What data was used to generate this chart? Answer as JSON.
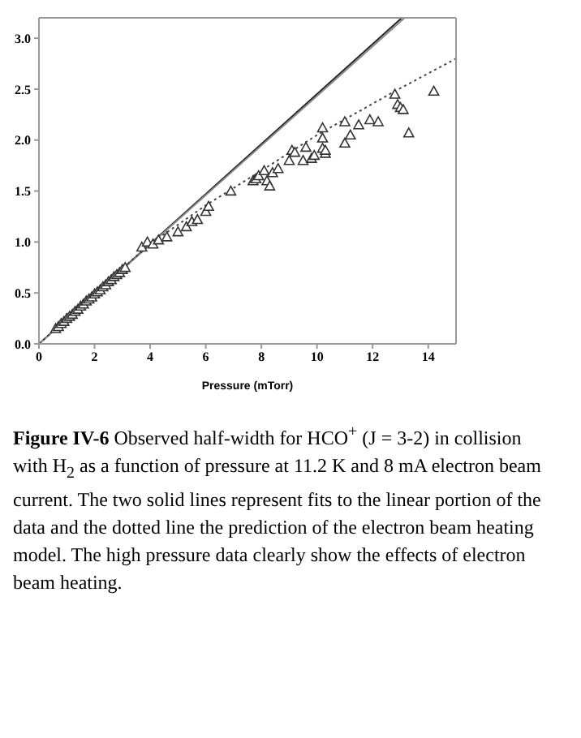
{
  "chart_data": {
    "type": "scatter",
    "xlabel": "Pressure (mTorr)",
    "annotations": [
      "Figure IV-6",
      "Observed half-width for HCO$^{+}$  (J = 3-2) in collision with H$_{2}$ as a function of pressure at 11.2 K and 8 mA electron beam current.  The two solid lines represent fits to the linear portion of the data and the dotted line the prediction of the electron beam heating model.  The high pressure data clearly show the effects of electron beam heating."
    ],
    "xlim": [
      0,
      15
    ],
    "xticks": [
      0,
      2,
      4,
      6,
      8,
      10,
      12,
      14
    ],
    "ylim": [
      0,
      3.2
    ],
    "yticks": [
      {
        "value": 0,
        "label": "0.0"
      },
      {
        "value": 0.5,
        "label": "0.5"
      },
      {
        "value": 1,
        "label": "1.0"
      },
      {
        "value": 1.5,
        "label": "1.5"
      },
      {
        "value": 2,
        "label": "2.0"
      },
      {
        "value": 2.5,
        "label": "2.5"
      },
      {
        "value": 3,
        "label": "3.0"
      }
    ],
    "series": [
      {
        "color": "#333333",
        "marker": "triangle",
        "x": [
          0.6,
          0.7,
          0.8,
          0.9,
          1.0,
          1.1,
          1.2,
          1.3,
          1.4,
          1.5,
          1.6,
          1.7,
          1.8,
          1.9,
          2.0,
          2.1,
          2.2,
          2.3,
          2.4,
          2.5,
          2.6,
          2.7,
          2.8,
          2.9,
          3.0,
          3.1,
          3.7,
          3.9,
          4.1,
          4.3,
          4.6,
          5.0,
          5.3,
          5.5,
          5.7,
          6.0,
          6.1,
          6.9,
          7.7,
          7.8,
          7.9,
          8.1,
          8.2,
          8.3,
          8.4,
          8.6,
          9.0,
          9.1,
          9.2,
          9.5,
          9.6,
          9.8,
          9.9,
          10.2,
          10.2,
          10.2,
          10.3,
          10.3,
          11.0,
          11.0,
          11.2,
          11.5,
          11.9,
          12.2,
          12.8,
          12.9,
          13.0,
          13.1,
          13.3,
          14.2
        ],
        "values": [
          0.15,
          0.17,
          0.2,
          0.22,
          0.25,
          0.27,
          0.29,
          0.32,
          0.34,
          0.37,
          0.39,
          0.42,
          0.44,
          0.46,
          0.49,
          0.51,
          0.53,
          0.56,
          0.58,
          0.61,
          0.63,
          0.66,
          0.68,
          0.7,
          0.73,
          0.75,
          0.95,
          1.0,
          0.98,
          1.02,
          1.05,
          1.1,
          1.15,
          1.2,
          1.22,
          1.3,
          1.35,
          1.5,
          1.6,
          1.62,
          1.65,
          1.7,
          1.6,
          1.55,
          1.68,
          1.72,
          1.8,
          1.9,
          1.88,
          1.8,
          1.93,
          1.82,
          1.85,
          2.02,
          2.12,
          1.92,
          1.87,
          1.9,
          2.18,
          1.97,
          2.05,
          2.15,
          2.2,
          2.18,
          2.45,
          2.35,
          2.32,
          2.3,
          2.07,
          2.48
        ]
      },
      {
        "type": "line",
        "color": "#222222",
        "line_style": "solid",
        "x": [
          0,
          13.05
        ],
        "values": [
          0,
          3.2
        ]
      },
      {
        "type": "line",
        "color": "#888888",
        "line_style": "solid",
        "x": [
          0,
          13.15
        ],
        "values": [
          0,
          3.2
        ]
      },
      {
        "type": "line",
        "color": "#444444",
        "line_style": "dotted",
        "x": [
          0,
          2,
          4,
          6,
          8,
          10,
          12.8,
          15
        ],
        "values": [
          0,
          0.5,
          0.98,
          1.36,
          1.7,
          2.05,
          2.48,
          2.8
        ]
      }
    ]
  }
}
